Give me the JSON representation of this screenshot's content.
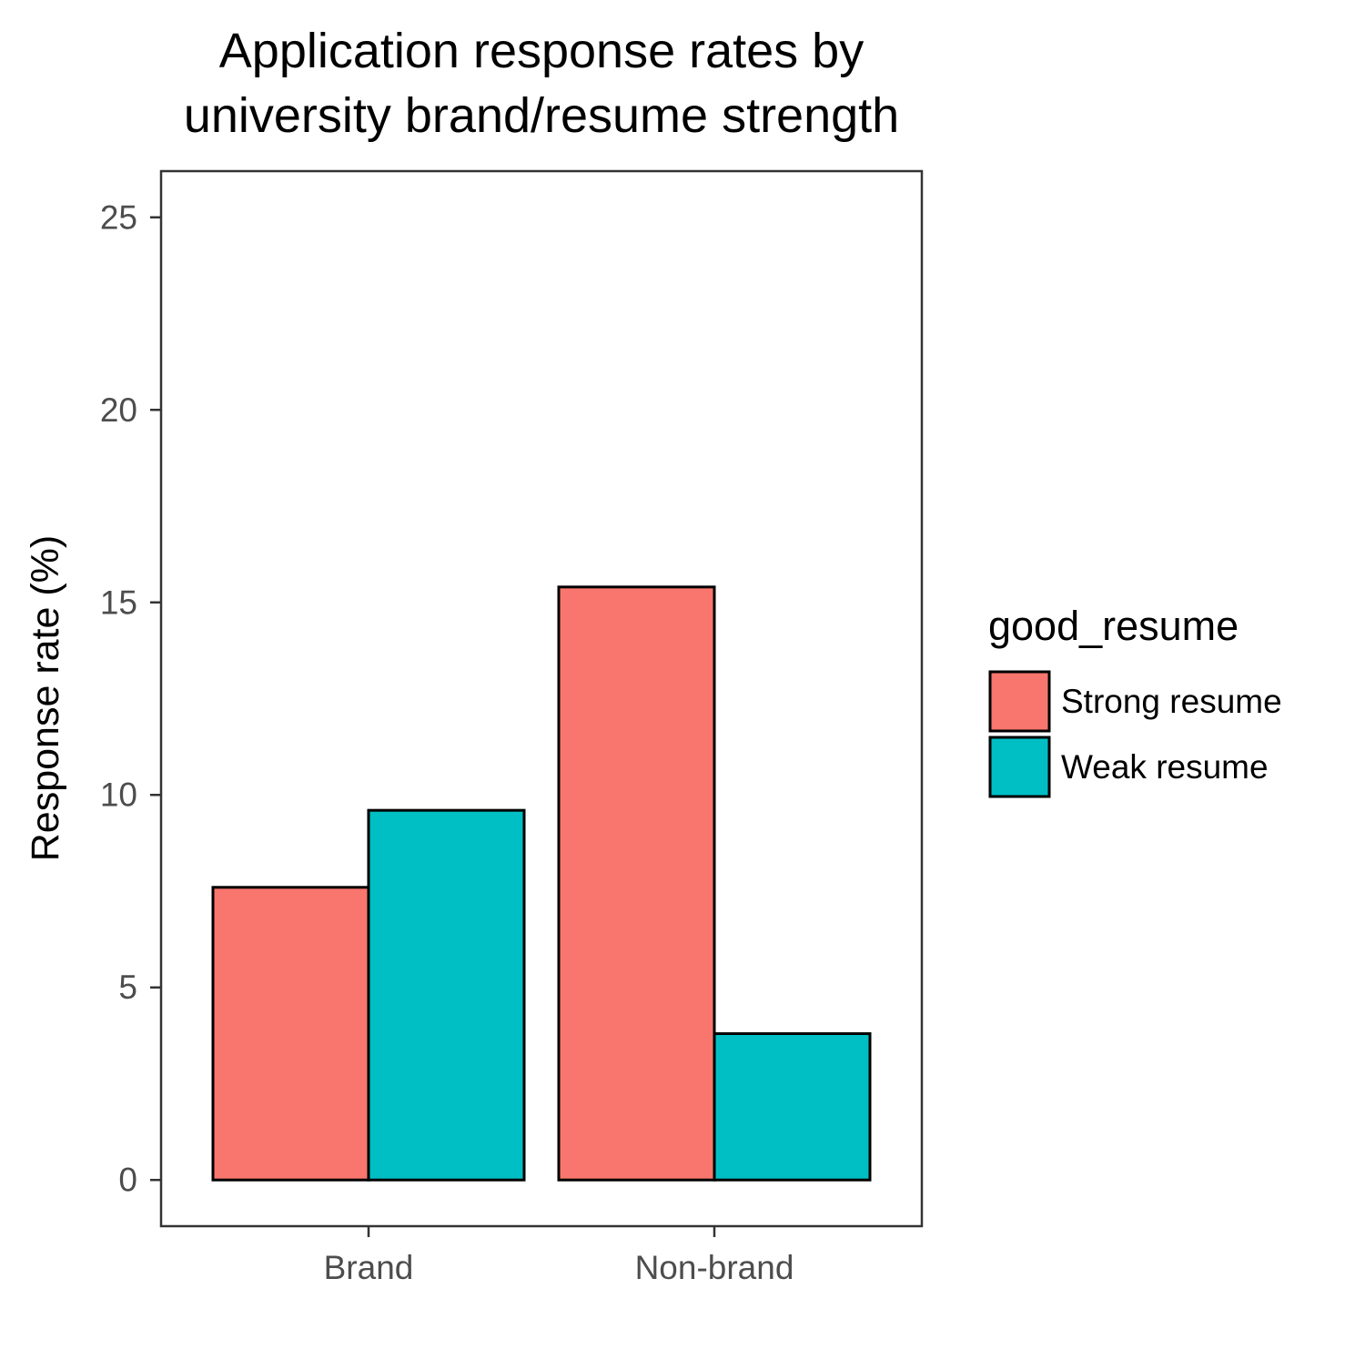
{
  "chart_data": {
    "type": "bar",
    "title_lines": [
      "Application response rates by",
      "university brand/resume strength"
    ],
    "xlabel": "",
    "ylabel": "Response rate (%)",
    "categories": [
      "Brand",
      "Non-brand"
    ],
    "series": [
      {
        "name": "Strong resume",
        "color": "#F8766D",
        "values": [
          7.6,
          15.4
        ]
      },
      {
        "name": "Weak resume",
        "color": "#00BFC4",
        "values": [
          9.6,
          3.8
        ]
      }
    ],
    "ylim": [
      -1.2,
      26.2
    ],
    "yticks": [
      0,
      5,
      10,
      15,
      20,
      25
    ],
    "legend": {
      "title": "good_resume",
      "position": "right"
    },
    "grid": false,
    "panel_border": true
  }
}
